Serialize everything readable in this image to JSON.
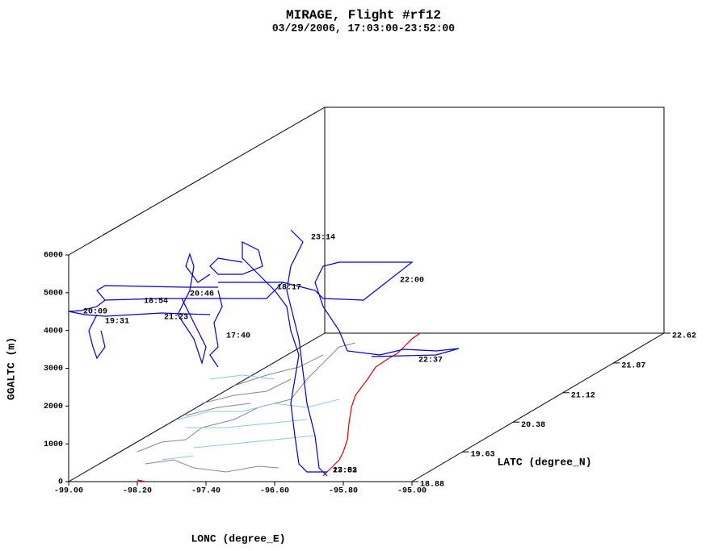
{
  "chart_data": {
    "type": "track3d",
    "title": "MIRAGE, Flight #rf12",
    "subtitle": "03/29/2006, 17:03:00-23:52:00",
    "xlabel": "LONC (degree_E)",
    "ylabel": "LATC (degree_N)",
    "zlabel": "GGALTC (m)",
    "xlim": [
      -99,
      -95
    ],
    "xticks": [
      {
        "value": -99,
        "label": "-99.00"
      },
      {
        "value": -98.2,
        "label": "-98.20"
      },
      {
        "value": -97.4,
        "label": "-97.40"
      },
      {
        "value": -96.6,
        "label": "-96.60"
      },
      {
        "value": -95.8,
        "label": "-95.80"
      },
      {
        "value": -95,
        "label": "-95.00"
      }
    ],
    "ylim": [
      18.88,
      22.62
    ],
    "yticks": [
      18.88,
      19.63,
      20.38,
      21.12,
      21.87,
      22.62
    ],
    "zlim": [
      0,
      6000
    ],
    "zticks": [
      0,
      1000,
      2000,
      3000,
      4000,
      5000,
      6000
    ],
    "time_labels": [
      "23:14",
      "22:00",
      "18:17",
      "20:46",
      "18:54",
      "20:09",
      "19:31",
      "21:23",
      "17:40",
      "22:37",
      "17:03",
      "23:52"
    ]
  }
}
